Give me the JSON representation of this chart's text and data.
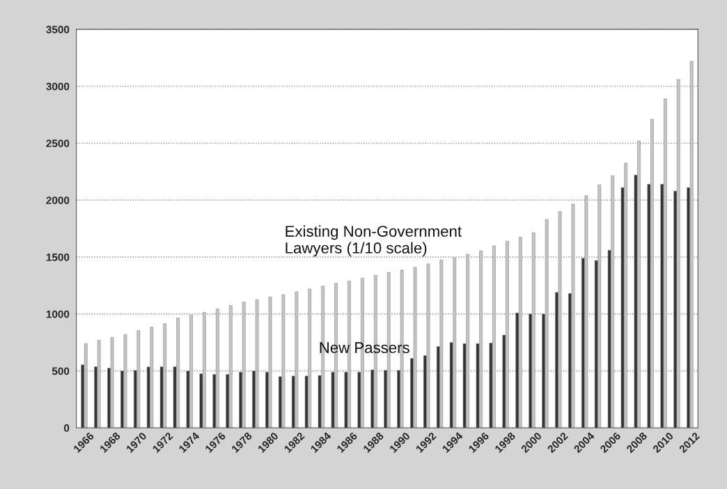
{
  "chart_data": {
    "type": "bar",
    "categories": [
      "1966",
      null,
      "1968",
      null,
      "1970",
      null,
      "1972",
      null,
      "1974",
      null,
      "1976",
      null,
      "1978",
      null,
      "1980",
      null,
      "1982",
      null,
      "1984",
      null,
      "1986",
      null,
      "1988",
      null,
      "1990",
      null,
      "1992",
      null,
      "1994",
      null,
      "1996",
      null,
      "1998",
      null,
      "2000",
      null,
      "2002",
      null,
      "2004",
      null,
      "2006",
      null,
      "2008",
      null,
      "2010",
      null,
      "2012"
    ],
    "series": [
      {
        "name": "New Passers",
        "color": "#333333",
        "values": [
          554,
          537,
          525,
          500,
          505,
          535,
          537,
          537,
          500,
          475,
          470,
          470,
          490,
          500,
          490,
          450,
          455,
          455,
          460,
          490,
          490,
          490,
          510,
          505,
          505,
          610,
          635,
          715,
          750,
          740,
          740,
          745,
          815,
          1010,
          1000,
          1000,
          1190,
          1180,
          1490,
          1470,
          1560,
          2110,
          2220,
          2140,
          2140,
          2080,
          2110
        ]
      },
      {
        "name": "Existing Non-Government\nLawyers (1/10 scale)",
        "color": "#c4c4c4",
        "values": [
          740,
          770,
          795,
          820,
          855,
          885,
          915,
          965,
          990,
          1015,
          1045,
          1075,
          1105,
          1125,
          1150,
          1170,
          1195,
          1220,
          1245,
          1270,
          1290,
          1315,
          1340,
          1365,
          1385,
          1410,
          1440,
          1475,
          1495,
          1525,
          1555,
          1600,
          1640,
          1675,
          1715,
          1830,
          1900,
          1965,
          2040,
          2135,
          2215,
          2325,
          2520,
          2710,
          2890,
          3060,
          3220
        ]
      }
    ],
    "ylim": [
      0,
      3500
    ],
    "yticks": [
      0,
      500,
      1000,
      1500,
      2000,
      2500,
      3000,
      3500
    ],
    "grid": "y",
    "legend": false
  }
}
